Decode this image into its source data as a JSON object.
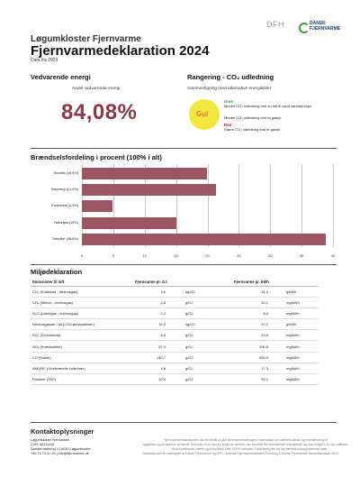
{
  "header": {
    "logo_dfh": "DFH",
    "logo_dansk": [
      "DANSK",
      "FJERNVARME"
    ],
    "company": "Løgumkloster Fjernvarme",
    "title": "Fjernvarmedeklaration 2024",
    "data_year": "Data fra 2023"
  },
  "renewable": {
    "heading": "Vedvarende energi",
    "subheading": "Andel vedvarende energi",
    "value": "84,08%"
  },
  "ranking": {
    "heading": "Rangering - CO₂ udledning",
    "subheading": "Sammenligning med alternative energikilder",
    "badge": "Gul",
    "items": [
      {
        "label": "Grøn",
        "text": "Mindre CO₂ udledning end en luft til vand varmepumpe",
        "color": "#3f9a3f"
      },
      {
        "label": "",
        "text": "Mindre CO₂ udledning end et gasfyr",
        "color": "#333333"
      },
      {
        "label": "Rød",
        "text": "Større CO₂ udledning end et gasfyr",
        "color": "#c0282d"
      }
    ]
  },
  "fuel_distribution": {
    "heading": "Brændselsfordeling i procent (100% i alt)",
    "chart_data": {
      "type": "bar",
      "orientation": "horizontal",
      "categories": [
        "Skovflis (19,9%)",
        "Solenergi (21,4%)",
        "Elektricitet (4,9%)",
        "Naturgas (15%)",
        "Træpiller (38,8%)"
      ],
      "values": [
        19.9,
        21.4,
        4.9,
        15,
        38.8
      ],
      "xlim": [
        0,
        40
      ],
      "xticks": [
        "0",
        "5",
        "10",
        "15",
        "20",
        "25",
        "30",
        "35",
        "40"
      ],
      "bar_color": "#9b5563"
    }
  },
  "environment": {
    "heading": "Miljødeklaration",
    "columns": [
      "Emissioner til luft",
      "Fjernvarme pr. GJ",
      "Fjernvarme pr. kWh"
    ],
    "rows": [
      {
        "name": "CO₂ (Kuldioxid - drivhusgas)",
        "gj": "9,6",
        "gj_unit": "kg/GJ",
        "kwh": "34,4",
        "kwh_unit": "g/kWh"
      },
      {
        "name": "CH₄ (Metan - drivhusgas)",
        "gj": "2,8",
        "gj_unit": "g/GJ",
        "kwh": "10,1",
        "kwh_unit": "mg/kWh"
      },
      {
        "name": "N₂O (Lattergas - drivhusgas)",
        "gj": "2,4",
        "gj_unit": "g/GJ",
        "kwh": "8,6",
        "kwh_unit": "mg/kWh"
      },
      {
        "name": "Drivhusgasser i alt (CO2-ækvivalenter)",
        "gj": "10,3",
        "gj_unit": "kg/GJ",
        "kwh": "37,0",
        "kwh_unit": "g/kWh"
      },
      {
        "name": "SO₂ (Svovldioxid)",
        "gj": "6,6",
        "gj_unit": "g/GJ",
        "kwh": "23,8",
        "kwh_unit": "mg/kWh"
      },
      {
        "name": "NOₓ (Kvælstofilter)",
        "gj": "57,4",
        "gj_unit": "g/GJ",
        "kwh": "206,6",
        "kwh_unit": "mg/kWh"
      },
      {
        "name": "CO (Kulilte)",
        "gj": "140,7",
        "gj_unit": "g/GJ",
        "kwh": "506,5",
        "kwh_unit": "mg/kWh"
      },
      {
        "name": "NMVOC (Uforbrændte kulbrinter)",
        "gj": "4,8",
        "gj_unit": "g/GJ",
        "kwh": "17,3",
        "kwh_unit": "mg/kWh"
      },
      {
        "name": "Partikler (TSP)",
        "gj": "10,9",
        "gj_unit": "g/GJ",
        "kwh": "39,2",
        "kwh_unit": "mg/kWh"
      }
    ]
  },
  "contact": {
    "heading": "Kontaktoplysninger",
    "lines": [
      "Løgumkloster Fjernvarme",
      "CVR: 66211118",
      "Sønderrnarksvej 1 | 6240 Løgumkloster",
      "+45 74 74 31 25 | info@lfjernvarme.dk"
    ],
    "note_lines": [
      "Fjernvarmedeklarationen har til formål at give fjernvarmeforbrugere information om værkets klima- og energiforbrug til",
      "opgørelse og produktion af varme, herunder hvor stor en andel af varmen, der kommer fra vedvarende energikilder og hvor meget CO₂ der udledes.",
      "Hvor kombineret varme og el fordeles efter 200% metoden. Data beregnes ud fra værkets indrapporterede data,",
      "Deklarationen er udarbejdet af Dansk Fjernvarme og DFH - Danske Fjernvarmeværkers Forening & Dansk Fjernvarme Handelsselskab 2024"
    ]
  }
}
